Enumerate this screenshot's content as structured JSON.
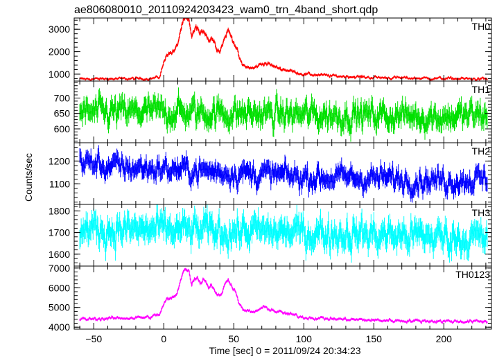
{
  "title": "ae806080010_20110924203423_wam0_trn_4band_short.qdp",
  "xlabel": "Time [sec] 0 = 2011/09/24 20:34:23",
  "ylabel": "Counts/sec",
  "chart_data": {
    "type": "line",
    "title": "ae806080010_20110924203423_wam0_trn_4band_short.qdp",
    "xlabel": "Time [sec] 0 = 2011/09/24 20:34:23",
    "ylabel": "Counts/sec",
    "xlim": [
      -64,
      234
    ],
    "xticks": [
      -50,
      0,
      50,
      100,
      150,
      200
    ],
    "grid": false,
    "legend": "none",
    "panels": [
      {
        "name": "TH0",
        "color": "#ff0000",
        "ylim": [
          690,
          3500
        ],
        "yticks": [
          1000,
          2000,
          3000
        ],
        "noise": 45,
        "profile": [
          [
            -60,
            780
          ],
          [
            -10,
            800
          ],
          [
            -3,
            860
          ],
          [
            -1,
            1300
          ],
          [
            2,
            1900
          ],
          [
            5,
            1950
          ],
          [
            8,
            2050
          ],
          [
            10,
            2350
          ],
          [
            12,
            2950
          ],
          [
            14,
            3350
          ],
          [
            16,
            3450
          ],
          [
            18,
            3300
          ],
          [
            20,
            2700
          ],
          [
            22,
            2950
          ],
          [
            24,
            3100
          ],
          [
            26,
            2700
          ],
          [
            28,
            2950
          ],
          [
            30,
            2850
          ],
          [
            32,
            2500
          ],
          [
            34,
            2650
          ],
          [
            36,
            2450
          ],
          [
            38,
            2150
          ],
          [
            40,
            2050
          ],
          [
            42,
            2350
          ],
          [
            44,
            2700
          ],
          [
            46,
            2950
          ],
          [
            48,
            2700
          ],
          [
            50,
            2450
          ],
          [
            52,
            2150
          ],
          [
            54,
            1700
          ],
          [
            56,
            1400
          ],
          [
            60,
            1300
          ],
          [
            64,
            1250
          ],
          [
            68,
            1400
          ],
          [
            72,
            1500
          ],
          [
            76,
            1420
          ],
          [
            80,
            1300
          ],
          [
            90,
            1150
          ],
          [
            100,
            1000
          ],
          [
            120,
            920
          ],
          [
            150,
            850
          ],
          [
            180,
            820
          ],
          [
            230,
            780
          ]
        ]
      },
      {
        "name": "TH1",
        "color": "#00e000",
        "ylim": [
          555,
          755
        ],
        "yticks": [
          600,
          650,
          700
        ],
        "noise": 30,
        "profile": [
          [
            -60,
            650
          ],
          [
            0,
            655
          ],
          [
            50,
            650
          ],
          [
            100,
            645
          ],
          [
            150,
            645
          ],
          [
            200,
            640
          ],
          [
            230,
            645
          ]
        ]
      },
      {
        "name": "TH2",
        "color": "#0000ff",
        "ylim": [
          1010,
          1280
        ],
        "yticks": [
          1100,
          1200
        ],
        "noise": 35,
        "profile": [
          [
            -60,
            1200
          ],
          [
            -40,
            1175
          ],
          [
            0,
            1165
          ],
          [
            50,
            1150
          ],
          [
            100,
            1130
          ],
          [
            150,
            1125
          ],
          [
            200,
            1115
          ],
          [
            230,
            1120
          ]
        ]
      },
      {
        "name": "TH3",
        "color": "#00ffff",
        "ylim": [
          1545,
          1830
        ],
        "yticks": [
          1600,
          1700,
          1800
        ],
        "noise": 50,
        "profile": [
          [
            -60,
            1715
          ],
          [
            0,
            1710
          ],
          [
            50,
            1705
          ],
          [
            100,
            1700
          ],
          [
            150,
            1690
          ],
          [
            200,
            1680
          ],
          [
            230,
            1670
          ]
        ]
      },
      {
        "name": "TH0123",
        "color": "#ff00ff",
        "ylim": [
          3900,
          7100
        ],
        "yticks": [
          4000,
          5000,
          6000,
          7000
        ],
        "noise": 60,
        "profile": [
          [
            -60,
            4400
          ],
          [
            -10,
            4500
          ],
          [
            -3,
            4650
          ],
          [
            -1,
            5000
          ],
          [
            2,
            5400
          ],
          [
            5,
            5450
          ],
          [
            8,
            5550
          ],
          [
            10,
            5850
          ],
          [
            12,
            6450
          ],
          [
            14,
            6850
          ],
          [
            16,
            6950
          ],
          [
            18,
            6800
          ],
          [
            20,
            6200
          ],
          [
            22,
            6450
          ],
          [
            24,
            6600
          ],
          [
            26,
            6200
          ],
          [
            28,
            6450
          ],
          [
            30,
            6350
          ],
          [
            32,
            6000
          ],
          [
            34,
            6150
          ],
          [
            36,
            5950
          ],
          [
            38,
            5650
          ],
          [
            40,
            5550
          ],
          [
            42,
            5850
          ],
          [
            44,
            6200
          ],
          [
            46,
            6450
          ],
          [
            48,
            6200
          ],
          [
            50,
            5950
          ],
          [
            52,
            5650
          ],
          [
            54,
            5200
          ],
          [
            56,
            4900
          ],
          [
            60,
            4800
          ],
          [
            64,
            4750
          ],
          [
            68,
            4900
          ],
          [
            72,
            5000
          ],
          [
            76,
            4920
          ],
          [
            80,
            4800
          ],
          [
            90,
            4650
          ],
          [
            100,
            4500
          ],
          [
            120,
            4420
          ],
          [
            150,
            4350
          ],
          [
            180,
            4320
          ],
          [
            230,
            4280
          ]
        ]
      }
    ]
  }
}
